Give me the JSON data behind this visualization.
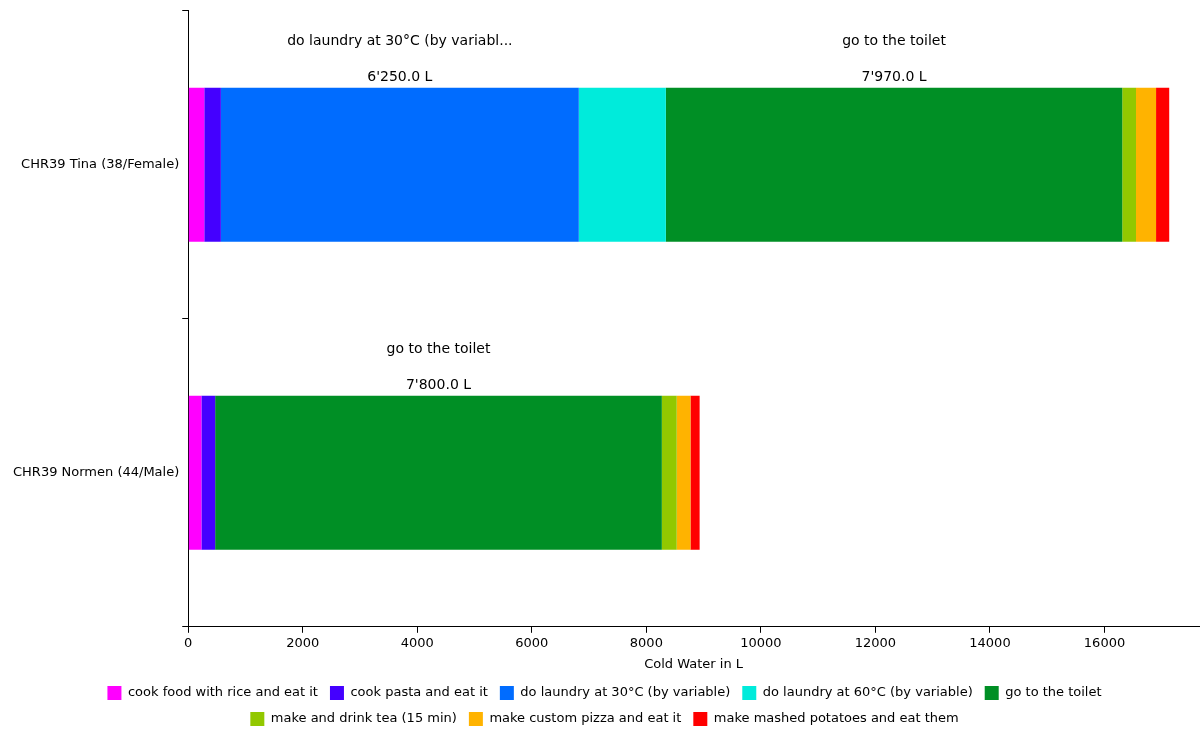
{
  "chart_data": {
    "type": "bar",
    "orientation": "horizontal",
    "stacked": true,
    "xlabel": "Cold Water in L",
    "categories": [
      "CHR39 Tina (38/Female)",
      "CHR39 Normen (44/Male)"
    ],
    "series": [
      {
        "name": "cook food with rice and eat it",
        "color": "#ff00ff",
        "values": [
          280,
          230
        ]
      },
      {
        "name": "cook pasta and eat it",
        "color": "#4400ff",
        "values": [
          290,
          240
        ]
      },
      {
        "name": "do laundry at 30°C (by variable)",
        "color": "#006cff",
        "values": [
          6250,
          null
        ],
        "value_labels": [
          "6'250.0 L",
          null
        ]
      },
      {
        "name": "do laundry at 60°C (by variable)",
        "color": "#00ebdb",
        "values": [
          1520,
          null
        ]
      },
      {
        "name": "go to the toilet",
        "color": "#008f25",
        "values": [
          7970,
          7800
        ],
        "value_labels": [
          "7'970.0 L",
          "7'800.0 L"
        ]
      },
      {
        "name": "make and drink tea (15 min)",
        "color": "#92c800",
        "values": [
          240,
          260
        ]
      },
      {
        "name": "make custom pizza and eat it",
        "color": "#ffb300",
        "values": [
          350,
          240
        ]
      },
      {
        "name": "make mashed potatoes and eat them",
        "color": "#ff0000",
        "values": [
          230,
          160
        ]
      }
    ],
    "xlim": [
      0,
      17650
    ],
    "xticks": [
      0,
      2000,
      4000,
      6000,
      8000,
      10000,
      12000,
      14000,
      16000
    ],
    "annotations": [
      "do laundry at 30°C (by variabl...",
      "go to the toilet",
      "go to the toilet"
    ],
    "grid": false,
    "legend": "bottom"
  }
}
